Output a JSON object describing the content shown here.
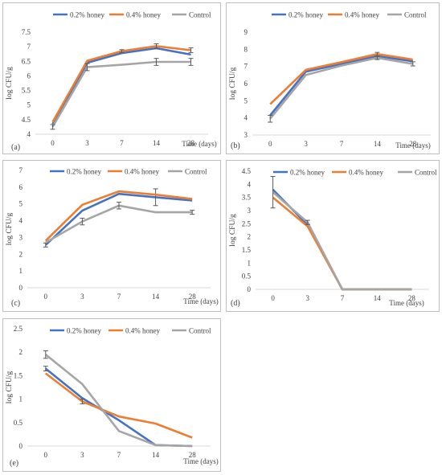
{
  "chart_data": [
    {
      "type": "line",
      "panel_label": "(a)",
      "categories": [
        "0",
        "3",
        "7",
        "14",
        "28"
      ],
      "ylabel": "log CFU/g",
      "xlabel": "Time (days)",
      "ylim": [
        4,
        7.5
      ],
      "yticks": [
        "4",
        "4.5",
        "5",
        "5.5",
        "6",
        "6.5",
        "7",
        "7.5"
      ],
      "legend": "top",
      "grid": false,
      "series": [
        {
          "name": "0.2% honey",
          "color": "#4472c4",
          "values": [
            4.35,
            6.45,
            6.78,
            6.95,
            6.73
          ],
          "err": [
            0,
            0,
            0,
            0,
            0
          ]
        },
        {
          "name": "0.4% honey",
          "color": "#ed7d31",
          "values": [
            4.42,
            6.52,
            6.85,
            7.02,
            6.88
          ],
          "err": [
            0,
            0,
            0.05,
            0.08,
            0.08
          ]
        },
        {
          "name": "Control",
          "color": "#a5a5a5",
          "values": [
            4.25,
            6.3,
            6.38,
            6.48,
            6.48
          ],
          "err": [
            0.08,
            0.12,
            0,
            0.12,
            0.12
          ]
        }
      ]
    },
    {
      "type": "line",
      "panel_label": "(b)",
      "categories": [
        "0",
        "3",
        "7",
        "14",
        "28"
      ],
      "ylabel": "log CFU/g",
      "xlabel": "Time (days)",
      "ylim": [
        3,
        9
      ],
      "yticks": [
        "3",
        "4",
        "5",
        "6",
        "7",
        "8",
        "9"
      ],
      "legend": "top",
      "grid": false,
      "series": [
        {
          "name": "0.2% honey",
          "color": "#4472c4",
          "values": [
            4.15,
            6.7,
            7.15,
            7.6,
            7.3
          ],
          "err": [
            0,
            0,
            0,
            0,
            0
          ]
        },
        {
          "name": "0.4% honey",
          "color": "#ed7d31",
          "values": [
            4.8,
            6.8,
            7.25,
            7.72,
            7.4
          ],
          "err": [
            0,
            0,
            0,
            0.1,
            0
          ]
        },
        {
          "name": "Control",
          "color": "#a5a5a5",
          "values": [
            3.95,
            6.5,
            7.05,
            7.5,
            7.15
          ],
          "err": [
            0.2,
            0,
            0,
            0.1,
            0.12
          ]
        }
      ]
    },
    {
      "type": "line",
      "panel_label": "(c)",
      "categories": [
        "0",
        "3",
        "7",
        "14",
        "28"
      ],
      "ylabel": "log CFU/g",
      "xlabel": "Time (days)",
      "ylim": [
        0,
        7
      ],
      "yticks": [
        "0",
        "1",
        "2",
        "3",
        "4",
        "5",
        "6",
        "7"
      ],
      "legend": "top",
      "grid": false,
      "series": [
        {
          "name": "0.2% honey",
          "color": "#4472c4",
          "values": [
            2.55,
            4.6,
            5.6,
            5.4,
            5.2
          ],
          "err": [
            0.12,
            0,
            0,
            0.5,
            0
          ]
        },
        {
          "name": "0.4% honey",
          "color": "#ed7d31",
          "values": [
            2.8,
            4.95,
            5.75,
            5.55,
            5.3
          ],
          "err": [
            0,
            0,
            0,
            0,
            0
          ]
        },
        {
          "name": "Control",
          "color": "#a5a5a5",
          "values": [
            2.7,
            3.95,
            4.9,
            4.5,
            4.5
          ],
          "err": [
            0,
            0.2,
            0.2,
            0,
            0.12
          ]
        }
      ]
    },
    {
      "type": "line",
      "panel_label": "(d)",
      "categories": [
        "0",
        "3",
        "7",
        "14",
        "28"
      ],
      "ylabel": "log CFU/g",
      "xlabel": "Time (days)",
      "ylim": [
        0,
        4.5
      ],
      "yticks": [
        "0",
        "0.5",
        "1",
        "1.5",
        "2",
        "2.5",
        "3",
        "3.5",
        "4",
        "4.5"
      ],
      "legend": "top",
      "grid": false,
      "series": [
        {
          "name": "0.2% honey",
          "color": "#4472c4",
          "values": [
            3.8,
            2.45,
            0,
            0,
            0
          ],
          "err": [
            0,
            0,
            0,
            0,
            0
          ]
        },
        {
          "name": "0.4% honey",
          "color": "#ed7d31",
          "values": [
            3.5,
            2.4,
            0,
            0,
            0
          ],
          "err": [
            0,
            0,
            0,
            0,
            0
          ]
        },
        {
          "name": "Control",
          "color": "#a5a5a5",
          "values": [
            3.7,
            2.55,
            0,
            0,
            0
          ],
          "err": [
            0.6,
            0.08,
            0,
            0,
            0
          ]
        }
      ]
    },
    {
      "type": "line",
      "panel_label": "(e)",
      "categories": [
        "0",
        "3",
        "7",
        "14",
        "28"
      ],
      "ylabel": "log CFU/g",
      "xlabel": "Time (days)",
      "ylim": [
        0,
        2.5
      ],
      "yticks": [
        "0",
        "0.5",
        "1",
        "1.5",
        "2",
        "2.5"
      ],
      "legend": "top",
      "grid": false,
      "series": [
        {
          "name": "0.2% honey",
          "color": "#4472c4",
          "values": [
            1.65,
            1.02,
            0.55,
            0.02,
            0
          ],
          "err": [
            0.05,
            0,
            0,
            0,
            0
          ]
        },
        {
          "name": "0.4% honey",
          "color": "#ed7d31",
          "values": [
            1.55,
            0.95,
            0.63,
            0.48,
            0.18
          ],
          "err": [
            0,
            0.05,
            0,
            0,
            0
          ]
        },
        {
          "name": "Control",
          "color": "#a5a5a5",
          "values": [
            1.95,
            1.32,
            0.32,
            0.02,
            0
          ],
          "err": [
            0.08,
            0,
            0,
            0,
            0
          ]
        }
      ]
    }
  ]
}
